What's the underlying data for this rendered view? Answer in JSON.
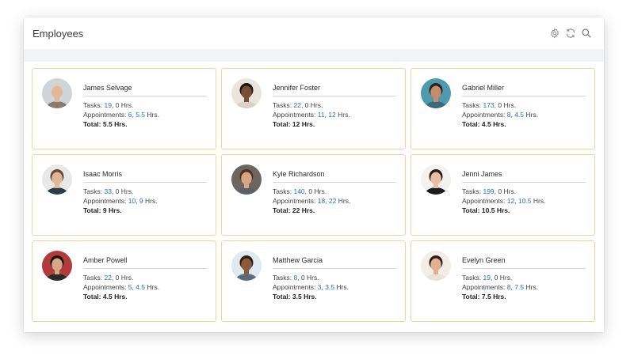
{
  "app": {
    "title": "Employees"
  },
  "toolbar": [
    {
      "icon": "gear-icon"
    },
    {
      "icon": "refresh-icon"
    },
    {
      "icon": "search-icon"
    }
  ],
  "labels": {
    "tasks": "Tasks:",
    "appointments": "Appointments:",
    "hrs": "Hrs.",
    "total_prefix": "Total:"
  },
  "employees": [
    {
      "name": "James Selvage",
      "tasks": "19",
      "task_hrs": "0",
      "appointments": "6",
      "appt_hrs": "5.5",
      "total": "5.5",
      "avatar": {
        "skin": "#e3b89a",
        "hair": "#d9d2c8",
        "bg": "#cfd4d8",
        "shirt": "#8a7a6a"
      }
    },
    {
      "name": "Jennifer Foster",
      "tasks": "22",
      "task_hrs": "0",
      "appointments": "11",
      "appt_hrs": "12",
      "total": "12",
      "avatar": {
        "skin": "#7a4e34",
        "hair": "#1e1410",
        "bg": "#e9e4dc",
        "shirt": "#d8d1c5"
      }
    },
    {
      "name": "Gabriel Miller",
      "tasks": "173",
      "task_hrs": "0",
      "appointments": "8",
      "appt_hrs": "4.5",
      "total": "4.5",
      "avatar": {
        "skin": "#c58e6a",
        "hair": "#2a2420",
        "bg": "#4e9bb0",
        "shirt": "#3a6a7a"
      }
    },
    {
      "name": "Isaac Morris",
      "tasks": "33",
      "task_hrs": "0",
      "appointments": "10",
      "appt_hrs": "9",
      "total": "9",
      "avatar": {
        "skin": "#e1b797",
        "hair": "#6a4a30",
        "bg": "#e8e8e8",
        "shirt": "#2c3a4c"
      }
    },
    {
      "name": "Kyle Richardson",
      "tasks": "140",
      "task_hrs": "0",
      "appointments": "18",
      "appt_hrs": "22",
      "total": "22",
      "avatar": {
        "skin": "#d6a584",
        "hair": "#4a3222",
        "bg": "#6c6560",
        "shirt": "#5a5f6a"
      }
    },
    {
      "name": "Jenni James",
      "tasks": "199",
      "task_hrs": "0",
      "appointments": "12",
      "appt_hrs": "10.5",
      "total": "10.5",
      "avatar": {
        "skin": "#e8bfa3",
        "hair": "#2a1a14",
        "bg": "#f4f2f0",
        "shirt": "#1b1b1b"
      }
    },
    {
      "name": "Amber Powell",
      "tasks": "22",
      "task_hrs": "0",
      "appointments": "5",
      "appt_hrs": "4.5",
      "total": "4.5",
      "avatar": {
        "skin": "#d4a98a",
        "hair": "#1c1410",
        "bg": "#b23a3a",
        "shirt": "#2a2a2a"
      }
    },
    {
      "name": "Matthew Garcia",
      "tasks": "8",
      "task_hrs": "0",
      "appointments": "3",
      "appt_hrs": "3.5",
      "total": "3.5",
      "avatar": {
        "skin": "#8a5a3c",
        "hair": "#2a1a12",
        "bg": "#dfe9ef",
        "shirt": "#5a6a7a"
      }
    },
    {
      "name": "Evelyn Green",
      "tasks": "19",
      "task_hrs": "0",
      "appointments": "8",
      "appt_hrs": "7.5",
      "total": "7.5",
      "avatar": {
        "skin": "#e0b090",
        "hair": "#2a1c14",
        "bg": "#f2ede6",
        "shirt": "#e9e2d8"
      }
    }
  ]
}
